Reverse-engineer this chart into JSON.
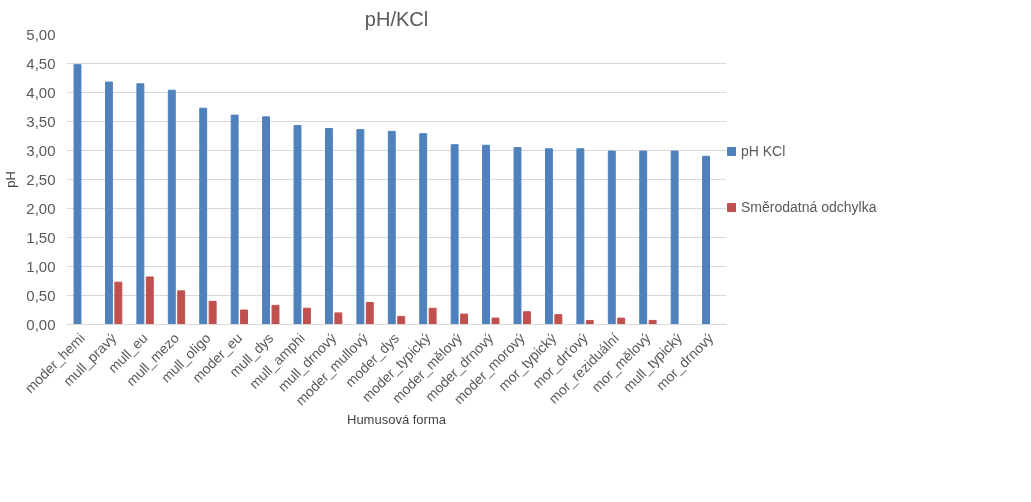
{
  "chart_data": {
    "type": "bar",
    "title": "pH/KCl",
    "xlabel": "Humusová forma",
    "ylabel": "pH",
    "categories": [
      "moder_hemi",
      "mull_pravý",
      "mull_eu",
      "mull_mezo",
      "mull_oligo",
      "moder_eu",
      "mull_dys",
      "mull_amphi",
      "mull_drnový",
      "moder_mullový",
      "moder_dys",
      "moder_typický",
      "moder_mělový",
      "moder_drnový",
      "moder_morový",
      "mor_typický",
      "mor_drťový",
      "mor_reziduální",
      "mor_mělový",
      "mull_typický",
      "mor_drnový"
    ],
    "series": [
      {
        "name": "pH KCl",
        "color": "#4f81bd",
        "values": [
          4.48,
          4.18,
          4.15,
          4.04,
          3.73,
          3.61,
          3.58,
          3.43,
          3.38,
          3.36,
          3.33,
          3.29,
          3.1,
          3.09,
          3.05,
          3.03,
          3.03,
          2.99,
          2.99,
          2.99,
          2.9
        ]
      },
      {
        "name": "Směrodatná odchylka",
        "color": "#c0504d",
        "values": [
          null,
          0.73,
          0.82,
          0.58,
          0.4,
          0.25,
          0.33,
          0.28,
          0.2,
          0.38,
          0.14,
          0.28,
          0.18,
          0.11,
          0.22,
          0.17,
          0.07,
          0.11,
          0.07,
          null,
          null
        ]
      }
    ],
    "ylim": [
      0,
      5
    ],
    "yticks": [
      {
        "value": 0,
        "label": "0,00"
      },
      {
        "value": 0.5,
        "label": "0,50"
      },
      {
        "value": 1,
        "label": "1,00"
      },
      {
        "value": 1.5,
        "label": "1,50"
      },
      {
        "value": 2,
        "label": "2,00"
      },
      {
        "value": 2.5,
        "label": "2,50"
      },
      {
        "value": 3,
        "label": "3,00"
      },
      {
        "value": 3.5,
        "label": "3,50"
      },
      {
        "value": 4,
        "label": "4,00"
      },
      {
        "value": 4.5,
        "label": "4,50"
      },
      {
        "value": 5,
        "label": "5,00"
      }
    ],
    "grid": "y",
    "legend": "right"
  }
}
